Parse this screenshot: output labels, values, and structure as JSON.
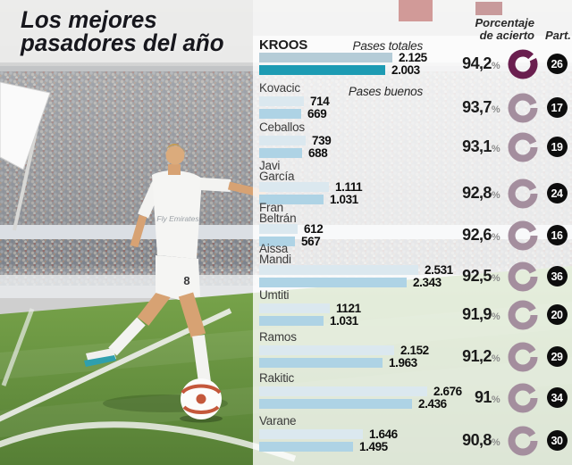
{
  "title": {
    "line1": "Los mejores",
    "line2": "pasadores del año"
  },
  "legend": {
    "totales": "Pases totales",
    "buenos": "Pases buenos"
  },
  "columns": {
    "porcentaje_line1": "Porcentaje",
    "porcentaje_line2": "de acierto",
    "part": "Part.",
    "percent_suffix": "%"
  },
  "photo": {
    "shirt_text": "Fly Emirates",
    "short_number": "8"
  },
  "colors": {
    "bar_totales": "#dbe8ef",
    "bar_buenos": "#aed3e5",
    "bar_totales_highlight": "#b5ccd7",
    "bar_buenos_highlight": "#1d9bb3",
    "donut": "#a48e9e",
    "donut_highlight": "#6a1f4f",
    "part_badge": "#0d0d0d",
    "title_text": "#17171d"
  },
  "chart_data": {
    "type": "bar",
    "orientation": "horizontal",
    "series_labels": [
      "Pases totales",
      "Pases buenos"
    ],
    "value_axis_max": 2676,
    "players": [
      {
        "name": "KROOS",
        "name_lines": [
          "KROOS"
        ],
        "totales": 2125,
        "totales_label": "2.125",
        "buenos": 2003,
        "buenos_label": "2.003",
        "pct": 94.2,
        "pct_label": "94,2",
        "part": "26",
        "highlight": true
      },
      {
        "name": "Kovacic",
        "name_lines": [
          "Kovacic"
        ],
        "totales": 714,
        "totales_label": "714",
        "buenos": 669,
        "buenos_label": "669",
        "pct": 93.7,
        "pct_label": "93,7",
        "part": "17",
        "highlight": false
      },
      {
        "name": "Ceballos",
        "name_lines": [
          "Ceballos"
        ],
        "totales": 739,
        "totales_label": "739",
        "buenos": 688,
        "buenos_label": "688",
        "pct": 93.1,
        "pct_label": "93,1",
        "part": "19",
        "highlight": false
      },
      {
        "name": "Javi García",
        "name_lines": [
          "Javi",
          "García"
        ],
        "totales": 1111,
        "totales_label": "1.111",
        "buenos": 1031,
        "buenos_label": "1.031",
        "pct": 92.8,
        "pct_label": "92,8",
        "part": "24",
        "highlight": false
      },
      {
        "name": "Fran Beltrán",
        "name_lines": [
          "Fran",
          "Beltrán"
        ],
        "totales": 612,
        "totales_label": "612",
        "buenos": 567,
        "buenos_label": "567",
        "pct": 92.6,
        "pct_label": "92,6",
        "part": "16",
        "highlight": false
      },
      {
        "name": "Aissa Mandi",
        "name_lines": [
          "Aissa",
          "Mandi"
        ],
        "totales": 2531,
        "totales_label": "2.531",
        "buenos": 2343,
        "buenos_label": "2.343",
        "pct": 92.5,
        "pct_label": "92,5",
        "part": "36",
        "highlight": false
      },
      {
        "name": "Umtiti",
        "name_lines": [
          "Umtiti"
        ],
        "totales": 1121,
        "totales_label": "1121",
        "buenos": 1031,
        "buenos_label": "1.031",
        "pct": 91.9,
        "pct_label": "91,9",
        "part": "20",
        "highlight": false
      },
      {
        "name": "Ramos",
        "name_lines": [
          "Ramos"
        ],
        "totales": 2152,
        "totales_label": "2.152",
        "buenos": 1963,
        "buenos_label": "1.963",
        "pct": 91.2,
        "pct_label": "91,2",
        "part": "29",
        "highlight": false
      },
      {
        "name": "Rakitic",
        "name_lines": [
          "Rakitic"
        ],
        "totales": 2676,
        "totales_label": "2.676",
        "buenos": 2436,
        "buenos_label": "2.436",
        "pct": 91.0,
        "pct_label": "91",
        "part": "34",
        "highlight": false
      },
      {
        "name": "Varane",
        "name_lines": [
          "Varane"
        ],
        "totales": 1646,
        "totales_label": "1.646",
        "buenos": 1495,
        "buenos_label": "1.495",
        "pct": 90.8,
        "pct_label": "90,8",
        "part": "30",
        "highlight": false
      }
    ]
  }
}
